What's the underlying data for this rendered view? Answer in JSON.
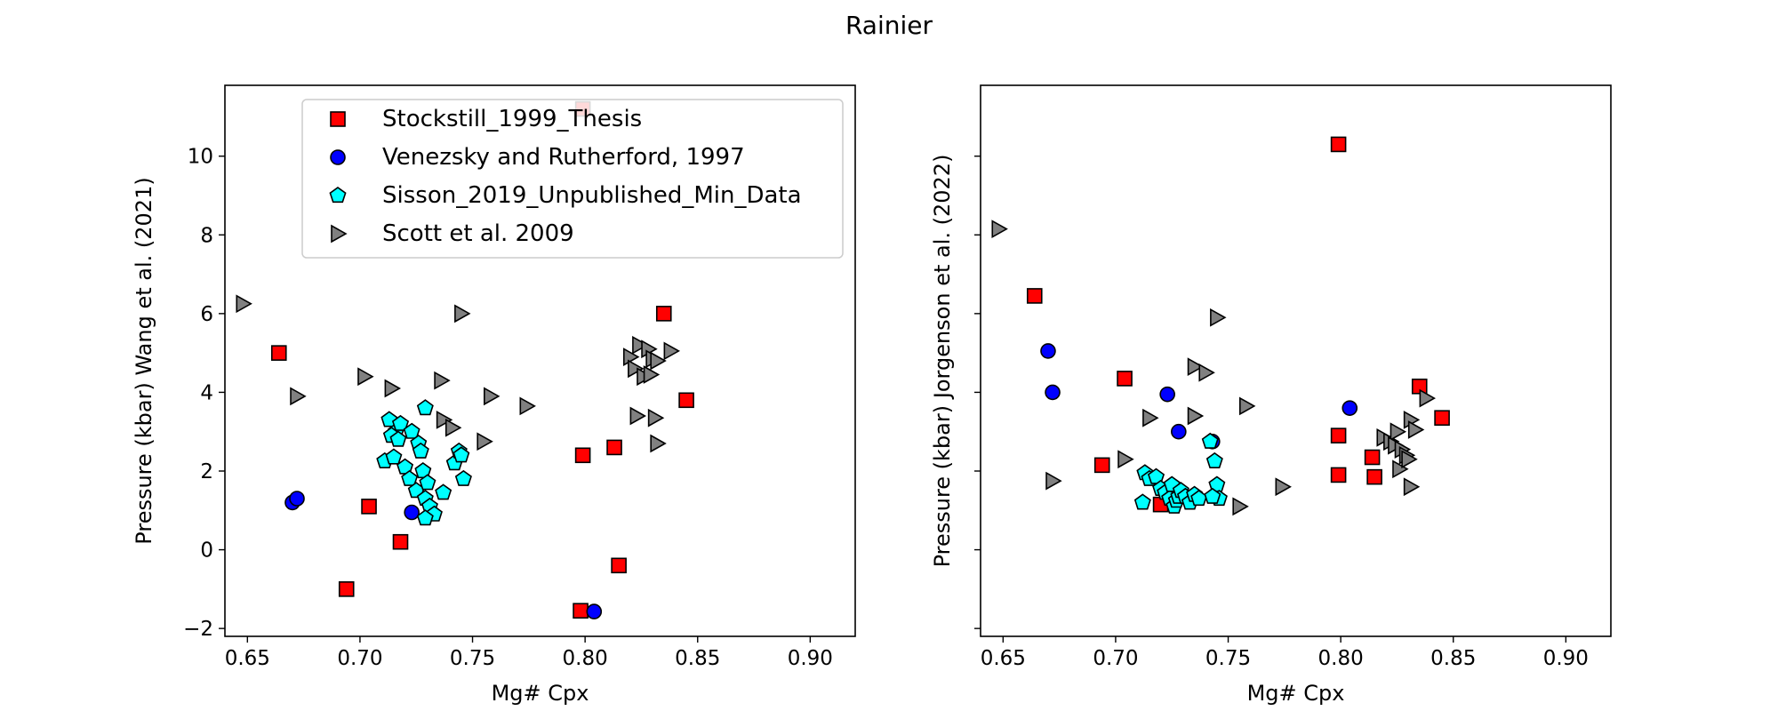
{
  "figure_title": "Rainier",
  "colors": {
    "Stockstill_1999_Thesis": "#ff0000",
    "Venezsky and Rutherford, 1997": "#0000ff",
    "Sisson_2019_Unpublished_Min_Data": "#00ffff",
    "Scott et al. 2009": "#808080"
  },
  "markers": {
    "Stockstill_1999_Thesis": "square",
    "Venezsky and Rutherford, 1997": "circle",
    "Sisson_2019_Unpublished_Min_Data": "pentagon",
    "Scott et al. 2009": "triangle-right"
  },
  "chart_data": [
    {
      "type": "scatter",
      "title": "",
      "xlabel": "Mg# Cpx",
      "ylabel": "Pressure (kbar) Wang et al. (2021)",
      "xlim": [
        0.64,
        0.92
      ],
      "ylim": [
        -2.2,
        11.8
      ],
      "xticks": [
        "0.65",
        "0.70",
        "0.75",
        "0.80",
        "0.85",
        "0.90"
      ],
      "yticks": [
        "−2",
        "0",
        "2",
        "4",
        "6",
        "8",
        "10"
      ],
      "grid": false,
      "legend_position": "upper center",
      "series": [
        {
          "name": "Stockstill_1999_Thesis",
          "points": [
            [
              0.664,
              5.0
            ],
            [
              0.694,
              -1.0
            ],
            [
              0.704,
              1.1
            ],
            [
              0.718,
              0.2
            ],
            [
              0.799,
              2.4
            ],
            [
              0.798,
              -1.55
            ],
            [
              0.813,
              2.6
            ],
            [
              0.815,
              -0.4
            ],
            [
              0.835,
              6.0
            ],
            [
              0.845,
              3.8
            ],
            [
              0.799,
              11.2
            ]
          ]
        },
        {
          "name": "Venezsky and Rutherford, 1997",
          "points": [
            [
              0.67,
              1.2
            ],
            [
              0.672,
              1.3
            ],
            [
              0.723,
              0.95
            ],
            [
              0.804,
              -1.57
            ]
          ]
        },
        {
          "name": "Sisson_2019_Unpublished_Min_Data",
          "points": [
            [
              0.713,
              3.3
            ],
            [
              0.716,
              3.0
            ],
            [
              0.718,
              3.2
            ],
            [
              0.714,
              2.9
            ],
            [
              0.717,
              2.8
            ],
            [
              0.723,
              3.0
            ],
            [
              0.729,
              3.6
            ],
            [
              0.726,
              2.7
            ],
            [
              0.727,
              2.5
            ],
            [
              0.711,
              2.25
            ],
            [
              0.715,
              2.35
            ],
            [
              0.72,
              2.1
            ],
            [
              0.722,
              1.8
            ],
            [
              0.725,
              1.5
            ],
            [
              0.728,
              2.0
            ],
            [
              0.73,
              1.7
            ],
            [
              0.729,
              1.3
            ],
            [
              0.731,
              1.1
            ],
            [
              0.733,
              0.9
            ],
            [
              0.729,
              0.8
            ],
            [
              0.737,
              1.45
            ],
            [
              0.742,
              2.2
            ],
            [
              0.744,
              2.5
            ],
            [
              0.746,
              1.8
            ],
            [
              0.745,
              2.4
            ]
          ]
        },
        {
          "name": "Scott et al. 2009",
          "points": [
            [
              0.648,
              6.25
            ],
            [
              0.672,
              3.9
            ],
            [
              0.702,
              4.4
            ],
            [
              0.714,
              4.1
            ],
            [
              0.736,
              4.3
            ],
            [
              0.737,
              3.3
            ],
            [
              0.741,
              3.1
            ],
            [
              0.745,
              6.0
            ],
            [
              0.758,
              3.9
            ],
            [
              0.755,
              2.75
            ],
            [
              0.774,
              3.65
            ],
            [
              0.82,
              4.9
            ],
            [
              0.824,
              5.2
            ],
            [
              0.828,
              5.1
            ],
            [
              0.83,
              4.85
            ],
            [
              0.822,
              4.6
            ],
            [
              0.826,
              4.4
            ],
            [
              0.829,
              4.45
            ],
            [
              0.832,
              4.8
            ],
            [
              0.838,
              5.05
            ],
            [
              0.823,
              3.4
            ],
            [
              0.831,
              3.35
            ],
            [
              0.832,
              2.7
            ]
          ]
        }
      ]
    },
    {
      "type": "scatter",
      "title": "",
      "xlabel": "Mg# Cpx",
      "ylabel": "Pressure (kbar) Jorgenson et al. (2022)",
      "xlim": [
        0.64,
        0.92
      ],
      "ylim": [
        -2.2,
        11.8
      ],
      "xticks": [
        "0.65",
        "0.70",
        "0.75",
        "0.80",
        "0.85",
        "0.90"
      ],
      "yticks": [],
      "grid": false,
      "legend_position": "none",
      "series": [
        {
          "name": "Stockstill_1999_Thesis",
          "points": [
            [
              0.664,
              6.45
            ],
            [
              0.694,
              2.15
            ],
            [
              0.704,
              4.35
            ],
            [
              0.72,
              1.15
            ],
            [
              0.799,
              10.3
            ],
            [
              0.799,
              2.9
            ],
            [
              0.799,
              1.9
            ],
            [
              0.814,
              2.35
            ],
            [
              0.815,
              1.85
            ],
            [
              0.835,
              4.15
            ],
            [
              0.845,
              3.35
            ]
          ]
        },
        {
          "name": "Venezsky and Rutherford, 1997",
          "points": [
            [
              0.67,
              5.05
            ],
            [
              0.672,
              4.0
            ],
            [
              0.723,
              3.95
            ],
            [
              0.728,
              3.0
            ],
            [
              0.743,
              2.75
            ],
            [
              0.804,
              3.6
            ]
          ]
        },
        {
          "name": "Sisson_2019_Unpublished_Min_Data",
          "points": [
            [
              0.712,
              1.2
            ],
            [
              0.713,
              1.95
            ],
            [
              0.715,
              1.8
            ],
            [
              0.718,
              1.85
            ],
            [
              0.72,
              1.55
            ],
            [
              0.722,
              1.45
            ],
            [
              0.724,
              1.3
            ],
            [
              0.725,
              1.65
            ],
            [
              0.726,
              1.1
            ],
            [
              0.727,
              1.25
            ],
            [
              0.728,
              1.35
            ],
            [
              0.729,
              1.5
            ],
            [
              0.731,
              1.35
            ],
            [
              0.733,
              1.2
            ],
            [
              0.735,
              1.4
            ],
            [
              0.737,
              1.3
            ],
            [
              0.742,
              2.75
            ],
            [
              0.744,
              2.25
            ],
            [
              0.745,
              1.65
            ],
            [
              0.746,
              1.3
            ],
            [
              0.743,
              1.35
            ]
          ]
        },
        {
          "name": "Scott et al. 2009",
          "points": [
            [
              0.648,
              8.15
            ],
            [
              0.672,
              1.75
            ],
            [
              0.704,
              2.3
            ],
            [
              0.715,
              3.35
            ],
            [
              0.735,
              4.65
            ],
            [
              0.735,
              3.4
            ],
            [
              0.74,
              4.5
            ],
            [
              0.745,
              5.9
            ],
            [
              0.755,
              1.1
            ],
            [
              0.758,
              3.65
            ],
            [
              0.774,
              1.6
            ],
            [
              0.819,
              2.85
            ],
            [
              0.822,
              2.75
            ],
            [
              0.825,
              3.0
            ],
            [
              0.824,
              2.65
            ],
            [
              0.827,
              2.55
            ],
            [
              0.829,
              2.4
            ],
            [
              0.826,
              2.05
            ],
            [
              0.831,
              3.3
            ],
            [
              0.833,
              3.05
            ],
            [
              0.838,
              3.85
            ],
            [
              0.83,
              2.3
            ],
            [
              0.831,
              1.6
            ]
          ]
        }
      ]
    }
  ]
}
